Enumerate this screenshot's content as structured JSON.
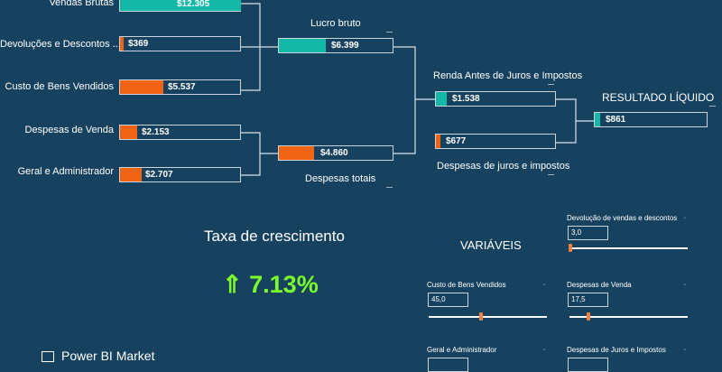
{
  "tree": {
    "vendas_brutas": {
      "label": "Vendas Brutas",
      "value": "$12.305"
    },
    "devolucoes": {
      "label": "Devoluções e Descontos ...",
      "value": "$369"
    },
    "custo_bens": {
      "label": "Custo de Bens Vendidos",
      "value": "$5.537"
    },
    "despesas_venda": {
      "label": "Despesas de Venda",
      "value": "$2.153"
    },
    "geral_admin": {
      "label": "Geral e Administrador",
      "value": "$2.707"
    },
    "lucro_bruto": {
      "label": "Lucro bruto",
      "value": "$6.399"
    },
    "despesas_totais": {
      "label": "Despesas totais",
      "value": "$4.860"
    },
    "renda_antes": {
      "label": "Renda Antes de Juros e Impostos",
      "value": "$1.538"
    },
    "despesas_juros": {
      "label": "Despesas de juros e impostos",
      "value": "$677"
    },
    "resultado": {
      "label": "RESULTADO LÍQUIDO",
      "value": "$861"
    }
  },
  "growth": {
    "title": "Taxa de crescimento",
    "arrow": "⇑",
    "value": "7.13%"
  },
  "variables": {
    "title": "VARIÁVEIS",
    "devolucao": {
      "label": "Devolução de vendas e descontos",
      "value": "3,0",
      "level": 0.0
    },
    "custo": {
      "label": "Custo de Bens Vendidos",
      "value": "45,0",
      "level": 0.45
    },
    "despesas_venda": {
      "label": "Despesas de Venda",
      "value": "17,5",
      "level": 0.17
    },
    "geral": {
      "label": "Geral e Administrador"
    },
    "juros": {
      "label": "Despesas de Juros e Impostos"
    }
  },
  "logo": {
    "text": "Power BI Market"
  },
  "colors": {
    "teal": "#13b8a6",
    "orange": "#f06414",
    "background": "#17425f",
    "growth": "#7cfc2b"
  }
}
